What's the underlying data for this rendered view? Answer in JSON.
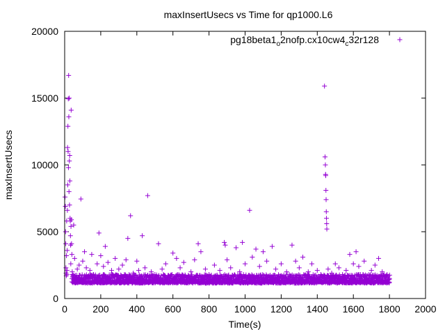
{
  "chart_data": {
    "type": "scatter",
    "title": "maxInsertUsecs vs Time for qp1000.L6",
    "xlabel": "Time(s)",
    "ylabel": "maxInsertUsecs",
    "xlim": [
      0,
      2000
    ],
    "ylim": [
      0,
      20000
    ],
    "xticks": [
      "0",
      "200",
      "400",
      "600",
      "800",
      "1000",
      "1200",
      "1400",
      "1600",
      "1800",
      "2000"
    ],
    "yticks": [
      "0",
      "5000",
      "10000",
      "15000",
      "20000"
    ],
    "grid": false,
    "legend_position": "top-right",
    "series": [
      {
        "name": "pg18beta1_o2nofp.cx10cw4_c32r128",
        "legend": {
          "main": "pg18beta1",
          "sub1": "o",
          "mid": "2nofp.cx10cw4",
          "sub2": "c",
          "tail": "32r128"
        },
        "color": "#9400d3",
        "marker": "plus",
        "points": [
          [
            2,
            7600
          ],
          [
            4,
            6900
          ],
          [
            5,
            5000
          ],
          [
            6,
            4100
          ],
          [
            7,
            2300
          ],
          [
            8,
            1900
          ],
          [
            9,
            1700
          ],
          [
            10,
            3200
          ],
          [
            11,
            5800
          ],
          [
            12,
            1800
          ],
          [
            13,
            2100
          ],
          [
            14,
            3600
          ],
          [
            15,
            6600
          ],
          [
            16,
            11300
          ],
          [
            17,
            8500
          ],
          [
            18,
            12900
          ],
          [
            19,
            11000
          ],
          [
            20,
            14950
          ],
          [
            21,
            9800
          ],
          [
            22,
            16700
          ],
          [
            23,
            13600
          ],
          [
            24,
            8000
          ],
          [
            25,
            15000
          ],
          [
            26,
            10300
          ],
          [
            27,
            7000
          ],
          [
            28,
            10700
          ],
          [
            29,
            8800
          ],
          [
            30,
            6000
          ],
          [
            31,
            5800
          ],
          [
            32,
            4700
          ],
          [
            33,
            4000
          ],
          [
            34,
            2600
          ],
          [
            35,
            5400
          ],
          [
            36,
            14100
          ],
          [
            37,
            5900
          ],
          [
            38,
            4100
          ],
          [
            40,
            3300
          ],
          [
            42,
            2000
          ],
          [
            45,
            1600
          ],
          [
            48,
            1400
          ],
          [
            50,
            5500
          ],
          [
            55,
            3000
          ],
          [
            60,
            1500
          ],
          [
            70,
            2200
          ],
          [
            80,
            2500
          ],
          [
            90,
            7450
          ],
          [
            100,
            2800
          ],
          [
            110,
            3500
          ],
          [
            120,
            2300
          ],
          [
            140,
            2100
          ],
          [
            150,
            3300
          ],
          [
            160,
            1800
          ],
          [
            180,
            2600
          ],
          [
            190,
            4900
          ],
          [
            200,
            3200
          ],
          [
            215,
            2400
          ],
          [
            225,
            3900
          ],
          [
            240,
            2700
          ],
          [
            260,
            2100
          ],
          [
            280,
            3000
          ],
          [
            300,
            2200
          ],
          [
            320,
            2500
          ],
          [
            340,
            2900
          ],
          [
            350,
            4500
          ],
          [
            365,
            6200
          ],
          [
            380,
            1900
          ],
          [
            400,
            2800
          ],
          [
            410,
            2100
          ],
          [
            430,
            4700
          ],
          [
            445,
            2300
          ],
          [
            460,
            7700
          ],
          [
            480,
            2000
          ],
          [
            500,
            1800
          ],
          [
            520,
            4100
          ],
          [
            540,
            2200
          ],
          [
            560,
            2600
          ],
          [
            600,
            3400
          ],
          [
            620,
            3000
          ],
          [
            640,
            2300
          ],
          [
            660,
            2700
          ],
          [
            700,
            2000
          ],
          [
            720,
            2900
          ],
          [
            740,
            4100
          ],
          [
            755,
            3500
          ],
          [
            780,
            2200
          ],
          [
            800,
            1800
          ],
          [
            830,
            2500
          ],
          [
            860,
            2100
          ],
          [
            885,
            4200
          ],
          [
            890,
            4000
          ],
          [
            900,
            2900
          ],
          [
            920,
            2300
          ],
          [
            950,
            3800
          ],
          [
            970,
            2000
          ],
          [
            985,
            4200
          ],
          [
            1000,
            2600
          ],
          [
            1025,
            6600
          ],
          [
            1040,
            3100
          ],
          [
            1060,
            3700
          ],
          [
            1080,
            2400
          ],
          [
            1100,
            3500
          ],
          [
            1120,
            2800
          ],
          [
            1150,
            3900
          ],
          [
            1170,
            2200
          ],
          [
            1200,
            2600
          ],
          [
            1230,
            2000
          ],
          [
            1260,
            4000
          ],
          [
            1280,
            2800
          ],
          [
            1300,
            2300
          ],
          [
            1320,
            3100
          ],
          [
            1350,
            2000
          ],
          [
            1370,
            2600
          ],
          [
            1400,
            2100
          ],
          [
            1420,
            1800
          ],
          [
            1440,
            15900
          ],
          [
            1443,
            10600
          ],
          [
            1445,
            10000
          ],
          [
            1446,
            9300
          ],
          [
            1447,
            9200
          ],
          [
            1448,
            8100
          ],
          [
            1449,
            7400
          ],
          [
            1450,
            6500
          ],
          [
            1451,
            6000
          ],
          [
            1452,
            5600
          ],
          [
            1453,
            5200
          ],
          [
            1460,
            2200
          ],
          [
            1480,
            1900
          ],
          [
            1500,
            2600
          ],
          [
            1520,
            2300
          ],
          [
            1540,
            1800
          ],
          [
            1560,
            2100
          ],
          [
            1580,
            3300
          ],
          [
            1600,
            2600
          ],
          [
            1615,
            3500
          ],
          [
            1630,
            2400
          ],
          [
            1660,
            2800
          ],
          [
            1700,
            2100
          ],
          [
            1720,
            2500
          ],
          [
            1740,
            3000
          ],
          [
            1760,
            2000
          ],
          [
            1780,
            1700
          ],
          [
            1800,
            1500
          ]
        ]
      }
    ],
    "dense_band": {
      "x_start": 40,
      "x_end": 1800,
      "x_step": 2,
      "lower": [
        1150,
        1300
      ],
      "upper": [
        1350,
        1800
      ]
    }
  }
}
